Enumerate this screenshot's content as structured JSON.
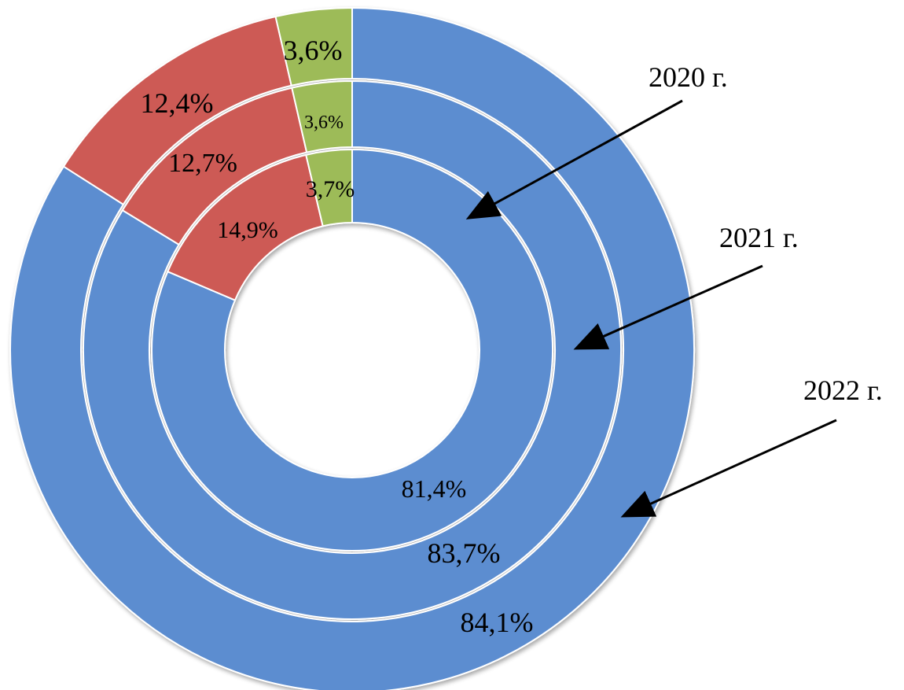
{
  "chart_data": {
    "type": "pie",
    "subtype": "multi-ring-doughnut",
    "title": "",
    "rings": [
      {
        "year": "2020 г.",
        "slices": [
          {
            "value": 81.4,
            "label": "81,4%",
            "color": "#5B8DD0"
          },
          {
            "value": 14.9,
            "label": "14,9%",
            "color": "#CD5A55"
          },
          {
            "value": 3.7,
            "label": "3,7%",
            "color": "#9DBB59"
          }
        ]
      },
      {
        "year": "2021 г.",
        "slices": [
          {
            "value": 83.7,
            "label": "83,7%",
            "color": "#5B8DD0"
          },
          {
            "value": 12.7,
            "label": "12,7%",
            "color": "#CD5A55"
          },
          {
            "value": 3.6,
            "label": "3,6%",
            "color": "#9DBB59"
          }
        ]
      },
      {
        "year": "2022 г.",
        "slices": [
          {
            "value": 84.1,
            "label": "84,1%",
            "color": "#5B8DD0"
          },
          {
            "value": 12.4,
            "label": "12,4%",
            "color": "#CD5A55"
          },
          {
            "value": 3.6,
            "label": "3,6%",
            "color": "#9DBB59"
          }
        ]
      }
    ],
    "legend": "none",
    "start_angle": "top, clockwise"
  }
}
